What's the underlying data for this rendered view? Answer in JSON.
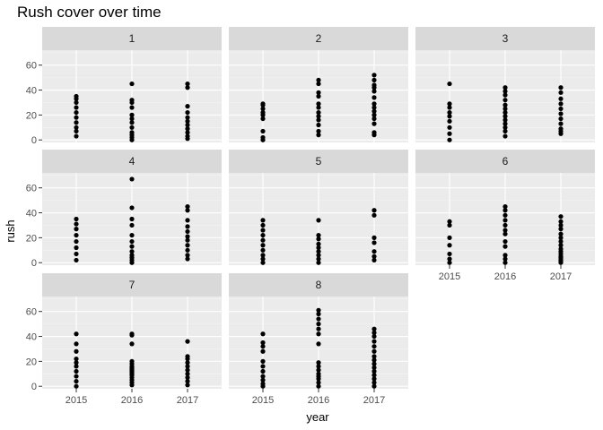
{
  "chart_data": {
    "type": "scatter",
    "title": "Rush cover over time",
    "xlabel": "year",
    "ylabel": "rush",
    "x_categories": [
      "2015",
      "2016",
      "2017"
    ],
    "y_ticks": [
      0,
      20,
      40,
      60
    ],
    "ylim": [
      -2,
      72
    ],
    "grid": true,
    "legend": "none",
    "facets": [
      {
        "label": "1",
        "points": {
          "2015": [
            3,
            7,
            10,
            14,
            18,
            22,
            26,
            30,
            33,
            35
          ],
          "2016": [
            0,
            2,
            4,
            6,
            10,
            14,
            17,
            20,
            26,
            30,
            32,
            45
          ],
          "2017": [
            1,
            3,
            6,
            9,
            12,
            15,
            18,
            22,
            27,
            42,
            45
          ]
        }
      },
      {
        "label": "2",
        "points": {
          "2015": [
            0,
            2,
            7,
            17,
            20,
            22,
            25,
            28,
            29
          ],
          "2016": [
            4,
            7,
            12,
            16,
            19,
            22,
            26,
            29,
            35,
            38,
            45,
            48
          ],
          "2017": [
            4,
            6,
            13,
            17,
            20,
            23,
            26,
            29,
            34,
            39,
            42,
            44,
            48,
            52
          ]
        }
      },
      {
        "label": "3",
        "points": {
          "2015": [
            0,
            5,
            10,
            15,
            19,
            22,
            26,
            29,
            45
          ],
          "2016": [
            3,
            7,
            10,
            13,
            16,
            19,
            22,
            25,
            28,
            32,
            36,
            39,
            42
          ],
          "2017": [
            5,
            7,
            9,
            13,
            17,
            21,
            25,
            29,
            33,
            38,
            42
          ]
        }
      },
      {
        "label": "4",
        "points": {
          "2015": [
            2,
            7,
            12,
            17,
            22,
            27,
            31,
            35
          ],
          "2016": [
            0,
            2,
            4,
            6,
            9,
            13,
            17,
            22,
            30,
            35,
            44,
            67
          ],
          "2017": [
            3,
            6,
            10,
            14,
            18,
            21,
            25,
            29,
            34,
            42,
            45
          ]
        }
      },
      {
        "label": "5",
        "points": {
          "2015": [
            0,
            3,
            6,
            10,
            14,
            18,
            22,
            26,
            30,
            34
          ],
          "2016": [
            0,
            3,
            6,
            9,
            12,
            15,
            19,
            22,
            34
          ],
          "2017": [
            2,
            5,
            9,
            16,
            20,
            38,
            42
          ]
        }
      },
      {
        "label": "6",
        "points": {
          "2015": [
            0,
            3,
            7,
            14,
            20,
            30,
            33
          ],
          "2016": [
            0,
            3,
            6,
            13,
            17,
            23,
            26,
            30,
            34,
            38,
            42,
            45
          ],
          "2017": [
            0,
            1,
            2,
            3,
            4,
            5,
            7,
            9,
            11,
            14,
            17,
            20,
            23,
            27,
            30,
            33,
            37
          ]
        }
      },
      {
        "label": "7",
        "points": {
          "2015": [
            0,
            4,
            8,
            12,
            16,
            19,
            22,
            28,
            34,
            42
          ],
          "2016": [
            1,
            3,
            5,
            7,
            9,
            10,
            11,
            12,
            13,
            14,
            15,
            16,
            18,
            20,
            34,
            41,
            42
          ],
          "2017": [
            1,
            4,
            7,
            10,
            13,
            16,
            19,
            22,
            24,
            36
          ]
        }
      },
      {
        "label": "8",
        "points": {
          "2015": [
            0,
            2,
            5,
            8,
            12,
            16,
            20,
            28,
            32,
            35,
            42
          ],
          "2016": [
            0,
            3,
            6,
            8,
            10,
            13,
            16,
            19,
            34,
            42,
            46,
            50,
            54,
            58,
            61
          ],
          "2017": [
            0,
            3,
            6,
            9,
            12,
            15,
            18,
            21,
            24,
            28,
            32,
            36,
            40,
            43,
            46
          ]
        }
      }
    ]
  }
}
